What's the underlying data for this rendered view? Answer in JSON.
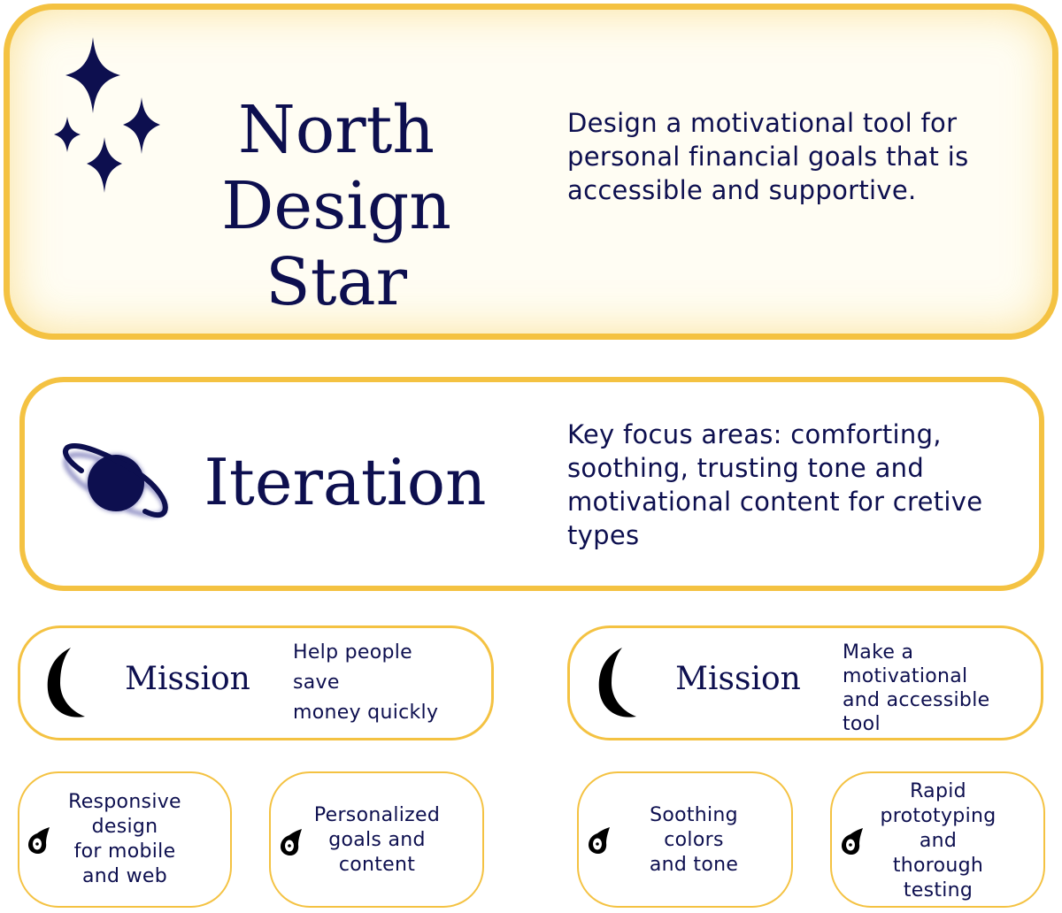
{
  "north": {
    "title_line1": "North",
    "title_line2": "Design Star",
    "description": "Design a motivational tool for personal financial goals that is accessible and supportive.",
    "icon": "sparkle-stars-icon"
  },
  "iteration": {
    "title": "Iteration",
    "description": "Key focus areas: comforting, soothing, trusting tone and motivational content for cretive types",
    "icon": "planet-icon"
  },
  "missions": [
    {
      "title": "Mission",
      "description_lines": [
        "Help people",
        "save",
        "money quickly"
      ],
      "icon": "crescent-moon-icon"
    },
    {
      "title": "Mission",
      "description_lines": [
        "Make a",
        "motivational",
        "and accessible",
        "tool"
      ],
      "icon": "crescent-moon-icon"
    }
  ],
  "features": [
    {
      "lines": [
        "Responsive",
        "design",
        "for mobile",
        "and web"
      ],
      "icon": "comet-icon"
    },
    {
      "lines": [
        "Personalized",
        "goals and",
        "content"
      ],
      "icon": "comet-icon"
    },
    {
      "lines": [
        "Soothing",
        "colors",
        "and tone"
      ],
      "icon": "comet-icon"
    },
    {
      "lines": [
        "Rapid",
        "prototyping",
        "and",
        "thorough",
        "testing"
      ],
      "icon": "comet-icon"
    }
  ],
  "colors": {
    "border": "#f4c242",
    "text": "#0d0f4f",
    "icon_dark": "#0d0f4f",
    "moon": "#000000"
  }
}
